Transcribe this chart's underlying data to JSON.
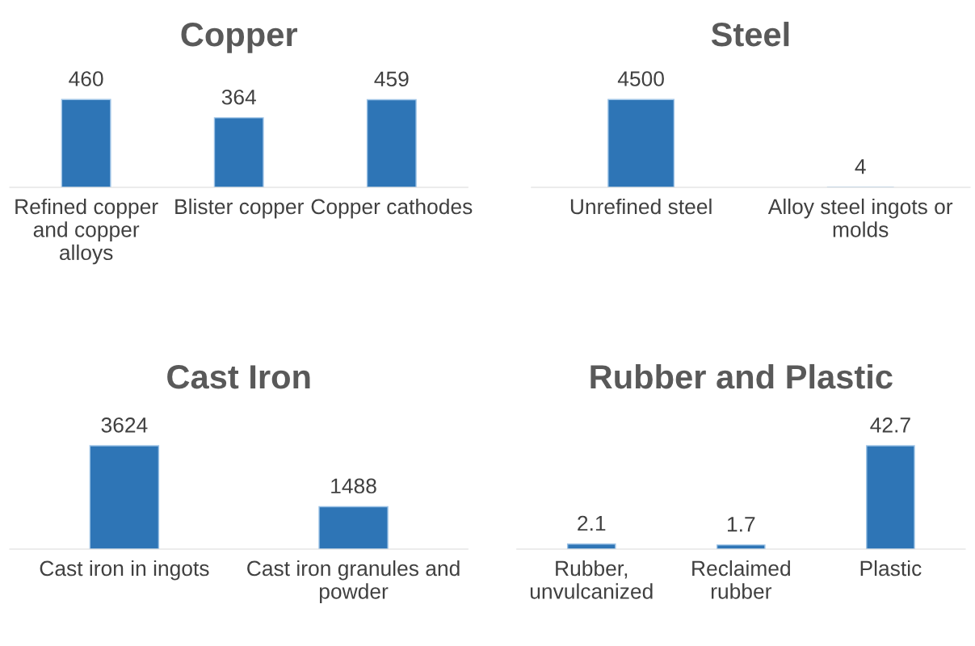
{
  "chart_data": [
    {
      "type": "bar",
      "title": "Copper",
      "categories": [
        "Refined copper and copper alloys",
        "Blister copper",
        "Copper cathodes"
      ],
      "values": [
        460,
        364,
        459
      ],
      "color": "#2e75b6",
      "data_labels": true,
      "tick_labels": "x"
    },
    {
      "type": "bar",
      "title": "Steel",
      "categories": [
        "Unrefined steel",
        "Alloy steel ingots or molds"
      ],
      "values": [
        4500,
        4
      ],
      "color": "#2e75b6",
      "data_labels": true,
      "tick_labels": "x"
    },
    {
      "type": "bar",
      "title": "Cast Iron",
      "categories": [
        "Cast iron in ingots",
        "Cast iron granules and powder"
      ],
      "values": [
        3624,
        1488
      ],
      "color": "#2e75b6",
      "data_labels": true,
      "tick_labels": "x"
    },
    {
      "type": "bar",
      "title": "Rubber and Plastic",
      "categories": [
        "Rubber, unvulcanized",
        "Reclaimed rubber",
        "Plastic"
      ],
      "values": [
        2.1,
        1.7,
        42.7
      ],
      "color": "#2e75b6",
      "data_labels": true,
      "tick_labels": "x"
    }
  ]
}
